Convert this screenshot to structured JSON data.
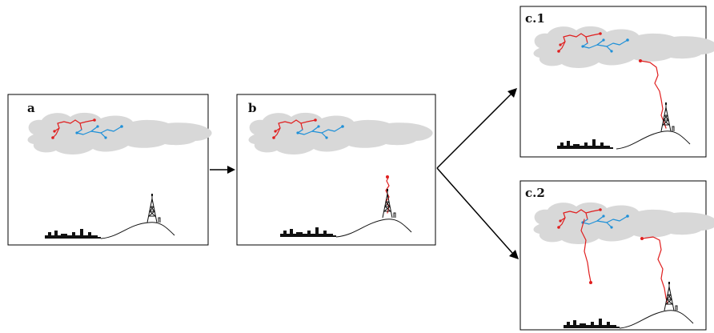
{
  "diagram": {
    "panels": [
      {
        "id": "a",
        "label": "a"
      },
      {
        "id": "b",
        "label": "b"
      },
      {
        "id": "c1",
        "label": "c.1"
      },
      {
        "id": "c2",
        "label": "c.2"
      }
    ],
    "colors": {
      "negative_leader": "#e01f1f",
      "positive_leader": "#1e90d8",
      "cloud": "#d8d8d8",
      "ground": "#111111"
    },
    "icons": [
      "cloud-icon",
      "city-skyline-icon",
      "tower-icon",
      "hill-icon",
      "arrow-icon"
    ]
  }
}
